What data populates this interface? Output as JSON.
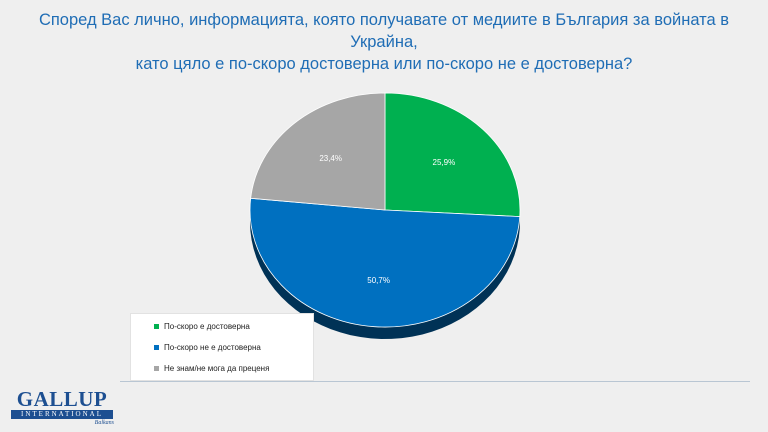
{
  "title": {
    "line1": "Според Вас лично, информацията, която получавате от медиите в България за войната в Украйна,",
    "line2": "като цяло е по-скоро достоверна или по-скоро не е достоверна?"
  },
  "chart_data": {
    "type": "pie",
    "title": "Според Вас лично, информацията, която получавате от медиите в България за войната в Украйна, като цяло е по-скоро достоверна или по-скоро не е достоверна?",
    "slices": [
      {
        "label": "По-скоро е достоверна",
        "value": 25.9,
        "display": "25,9%",
        "color": "#00b050"
      },
      {
        "label": "По-скоро не е достоверна",
        "value": 50.7,
        "display": "50,7%",
        "color": "#0070c0"
      },
      {
        "label": "Не знам/не мога да преценя",
        "value": 23.4,
        "display": "23,4%",
        "color": "#a6a6a6"
      }
    ],
    "legend_position": "bottom-left"
  },
  "logo": {
    "name": "GALLUP",
    "band": "INTERNATIONAL",
    "sub": "Balkans"
  }
}
